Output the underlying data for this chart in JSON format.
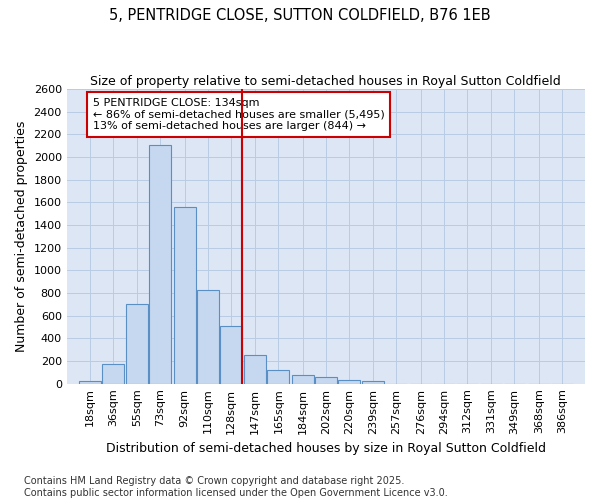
{
  "title": "5, PENTRIDGE CLOSE, SUTTON COLDFIELD, B76 1EB",
  "subtitle": "Size of property relative to semi-detached houses in Royal Sutton Coldfield",
  "xlabel": "Distribution of semi-detached houses by size in Royal Sutton Coldfield",
  "ylabel": "Number of semi-detached properties",
  "bin_labels": [
    "18sqm",
    "36sqm",
    "55sqm",
    "73sqm",
    "92sqm",
    "110sqm",
    "128sqm",
    "147sqm",
    "165sqm",
    "184sqm",
    "202sqm",
    "220sqm",
    "239sqm",
    "257sqm",
    "276sqm",
    "294sqm",
    "312sqm",
    "331sqm",
    "349sqm",
    "368sqm",
    "386sqm"
  ],
  "bar_heights": [
    20,
    175,
    700,
    2110,
    1560,
    825,
    510,
    255,
    125,
    80,
    60,
    35,
    20,
    0,
    0,
    0,
    0,
    0,
    0,
    0,
    0
  ],
  "bar_color": "#c5d8f0",
  "bar_edge_color": "#5a8fc5",
  "grid_color": "#b8cce4",
  "background_color": "#dce6f5",
  "plot_bg_color": "#dce6f5",
  "vline_label": "5 PENTRIDGE CLOSE: 134sqm",
  "annotation_line1": "← 86% of semi-detached houses are smaller (5,495)",
  "annotation_line2": "13% of semi-detached houses are larger (844) →",
  "annotation_box_facecolor": "#ffffff",
  "annotation_box_edgecolor": "#cc0000",
  "vline_color": "#cc0000",
  "ylim": [
    0,
    2600
  ],
  "footer": "Contains HM Land Registry data © Crown copyright and database right 2025.\nContains public sector information licensed under the Open Government Licence v3.0.",
  "title_fontsize": 10.5,
  "subtitle_fontsize": 9,
  "axis_label_fontsize": 9,
  "tick_fontsize": 8,
  "footer_fontsize": 7
}
